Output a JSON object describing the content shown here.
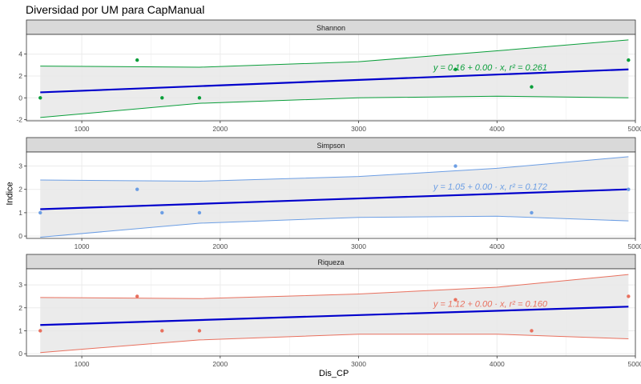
{
  "chart_data": {
    "type": "scatter",
    "title": "Diversidad por UM para CapManual",
    "xlabel": "Dis_CP",
    "ylabel": "Indice",
    "xlim": [
      600,
      5000
    ],
    "xticks": [
      1000,
      2000,
      3000,
      4000,
      5000
    ],
    "x": [
      700,
      1400,
      1580,
      1850,
      3700,
      4250,
      4950
    ],
    "grid": true,
    "colors": {
      "fit_line": "#0000cc",
      "band_fill": "#e8e8e8",
      "strip_fill": "#d9d9d9",
      "grid": "#ebebeb"
    },
    "panels": [
      {
        "strip": "Shannon",
        "color": "#0a9e3a",
        "ylim": [
          -2.1,
          5.8
        ],
        "yticks": [
          -2,
          0,
          2,
          4
        ],
        "y": [
          0.0,
          3.45,
          0.0,
          0.0,
          2.6,
          1.0,
          3.45
        ],
        "fit": [
          [
            700,
            0.5
          ],
          [
            4950,
            2.6
          ]
        ],
        "band_upper": [
          [
            700,
            2.9
          ],
          [
            1850,
            2.8
          ],
          [
            3000,
            3.3
          ],
          [
            4000,
            4.3
          ],
          [
            4950,
            5.3
          ]
        ],
        "band_lower": [
          [
            700,
            -1.8
          ],
          [
            1850,
            -0.5
          ],
          [
            3000,
            0.0
          ],
          [
            4000,
            0.15
          ],
          [
            4950,
            0.0
          ]
        ],
        "equation": "y = 0.16 + 0.00 · x,  r² = 0.261"
      },
      {
        "strip": "Simpson",
        "color": "#6c9ee4",
        "ylim": [
          -0.1,
          3.6
        ],
        "yticks": [
          0,
          1,
          2,
          3
        ],
        "y": [
          1.0,
          2.0,
          1.0,
          1.0,
          3.0,
          1.0,
          2.0
        ],
        "fit": [
          [
            700,
            1.15
          ],
          [
            4950,
            2.0
          ]
        ],
        "band_upper": [
          [
            700,
            2.4
          ],
          [
            1850,
            2.35
          ],
          [
            3000,
            2.55
          ],
          [
            4000,
            2.9
          ],
          [
            4950,
            3.4
          ]
        ],
        "band_lower": [
          [
            700,
            -0.05
          ],
          [
            1850,
            0.55
          ],
          [
            3000,
            0.8
          ],
          [
            4000,
            0.85
          ],
          [
            4950,
            0.65
          ]
        ],
        "equation": "y = 1.05 + 0.00 · x,  r² = 0.172"
      },
      {
        "strip": "Riqueza",
        "color": "#e8705e",
        "ylim": [
          -0.1,
          3.7
        ],
        "yticks": [
          0,
          1,
          2,
          3
        ],
        "y": [
          1.0,
          2.5,
          1.0,
          1.0,
          2.35,
          1.0,
          2.5
        ],
        "fit": [
          [
            700,
            1.25
          ],
          [
            4950,
            2.05
          ]
        ],
        "band_upper": [
          [
            700,
            2.45
          ],
          [
            1850,
            2.4
          ],
          [
            3000,
            2.6
          ],
          [
            4000,
            2.9
          ],
          [
            4950,
            3.45
          ]
        ],
        "band_lower": [
          [
            700,
            0.05
          ],
          [
            1850,
            0.6
          ],
          [
            3000,
            0.85
          ],
          [
            4000,
            0.85
          ],
          [
            4950,
            0.65
          ]
        ],
        "equation": "y = 1.12 + 0.00 · x,  r² = 0.160"
      }
    ]
  }
}
